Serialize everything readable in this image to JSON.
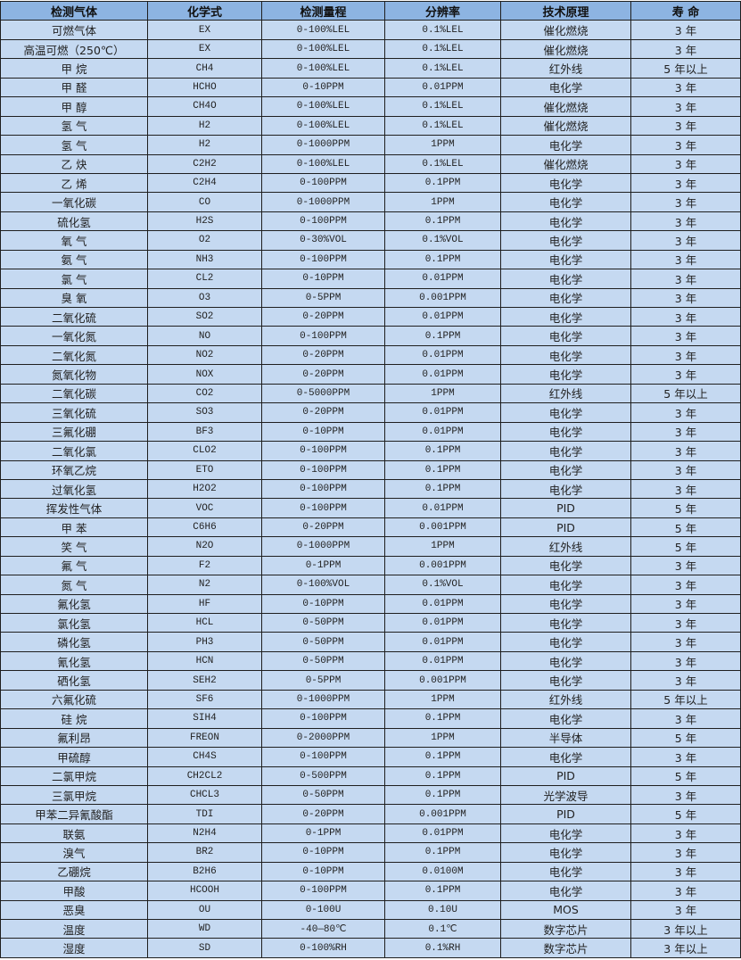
{
  "colors": {
    "header_bg": "#8db4e2",
    "row_bg": "#c5d9f1",
    "border": "#1f1f1f"
  },
  "headers": [
    "检测气体",
    "化学式",
    "检测量程",
    "分辨率",
    "技术原理",
    "寿 命"
  ],
  "rows": [
    [
      "可燃气体",
      "EX",
      "0-100%LEL",
      "0.1%LEL",
      "催化燃烧",
      "3 年"
    ],
    [
      "高温可燃（250℃）",
      "EX",
      "0-100%LEL",
      "0.1%LEL",
      "催化燃烧",
      "3 年"
    ],
    [
      "甲 烷",
      "CH4",
      "0-100%LEL",
      "0.1%LEL",
      "红外线",
      "5 年以上"
    ],
    [
      "甲 醛",
      "HCHO",
      "0-10PPM",
      "0.01PPM",
      "电化学",
      "3 年"
    ],
    [
      "甲 醇",
      "CH4O",
      "0-100%LEL",
      "0.1%LEL",
      "催化燃烧",
      "3 年"
    ],
    [
      "氢 气",
      "H2",
      "0-100%LEL",
      "0.1%LEL",
      "催化燃烧",
      "3 年"
    ],
    [
      "氢 气",
      "H2",
      "0-1000PPM",
      "1PPM",
      "电化学",
      "3 年"
    ],
    [
      "乙 炔",
      "C2H2",
      "0-100%LEL",
      "0.1%LEL",
      "催化燃烧",
      "3 年"
    ],
    [
      "乙 烯",
      "C2H4",
      "0-100PPM",
      "0.1PPM",
      "电化学",
      "3 年"
    ],
    [
      "一氧化碳",
      "CO",
      "0-1000PPM",
      "1PPM",
      "电化学",
      "3 年"
    ],
    [
      "硫化氢",
      "H2S",
      "0-100PPM",
      "0.1PPM",
      "电化学",
      "3 年"
    ],
    [
      "氧 气",
      "O2",
      "0-30%VOL",
      "0.1%VOL",
      "电化学",
      "3 年"
    ],
    [
      "氨 气",
      "NH3",
      "0-100PPM",
      "0.1PPM",
      "电化学",
      "3 年"
    ],
    [
      "氯 气",
      "CL2",
      "0-10PPM",
      "0.01PPM",
      "电化学",
      "3 年"
    ],
    [
      "臭 氧",
      "O3",
      "0-5PPM",
      "0.001PPM",
      "电化学",
      "3 年"
    ],
    [
      "二氧化硫",
      "SO2",
      "0-20PPM",
      "0.01PPM",
      "电化学",
      "3 年"
    ],
    [
      "一氧化氮",
      "NO",
      "0-100PPM",
      "0.1PPM",
      "电化学",
      "3 年"
    ],
    [
      "二氧化氮",
      "NO2",
      "0-20PPM",
      "0.01PPM",
      "电化学",
      "3 年"
    ],
    [
      "氮氧化物",
      "NOX",
      "0-20PPM",
      "0.01PPM",
      "电化学",
      "3 年"
    ],
    [
      "二氧化碳",
      "CO2",
      "0-5000PPM",
      "1PPM",
      "红外线",
      "5 年以上"
    ],
    [
      "三氧化硫",
      "SO3",
      "0-20PPM",
      "0.01PPM",
      "电化学",
      "3 年"
    ],
    [
      "三氟化硼",
      "BF3",
      "0-10PPM",
      "0.01PPM",
      "电化学",
      "3 年"
    ],
    [
      "二氧化氯",
      "CLO2",
      "0-100PPM",
      "0.1PPM",
      "电化学",
      "3 年"
    ],
    [
      "环氧乙烷",
      "ETO",
      "0-100PPM",
      "0.1PPM",
      "电化学",
      "3 年"
    ],
    [
      "过氧化氢",
      "H2O2",
      "0-100PPM",
      "0.1PPM",
      "电化学",
      "3 年"
    ],
    [
      "挥发性气体",
      "VOC",
      "0-100PPM",
      "0.01PPM",
      "PID",
      "5 年"
    ],
    [
      "甲 苯",
      "C6H6",
      "0-20PPM",
      "0.001PPM",
      "PID",
      "5 年"
    ],
    [
      "笑 气",
      "N2O",
      "0-1000PPM",
      "1PPM",
      "红外线",
      "5 年"
    ],
    [
      "氟 气",
      "F2",
      "0-1PPM",
      "0.001PPM",
      "电化学",
      "3 年"
    ],
    [
      "氮 气",
      "N2",
      "0-100%VOL",
      "0.1%VOL",
      "电化学",
      "3 年"
    ],
    [
      "氟化氢",
      "HF",
      "0-10PPM",
      "0.01PPM",
      "电化学",
      "3 年"
    ],
    [
      "氯化氢",
      "HCL",
      "0-50PPM",
      "0.01PPM",
      "电化学",
      "3 年"
    ],
    [
      "磷化氢",
      "PH3",
      "0-50PPM",
      "0.01PPM",
      "电化学",
      "3 年"
    ],
    [
      "氰化氢",
      "HCN",
      "0-50PPM",
      "0.01PPM",
      "电化学",
      "3 年"
    ],
    [
      "硒化氢",
      "SEH2",
      "0-5PPM",
      "0.001PPM",
      "电化学",
      "3 年"
    ],
    [
      "六氟化硫",
      "SF6",
      "0-1000PPM",
      "1PPM",
      "红外线",
      "5 年以上"
    ],
    [
      "硅 烷",
      "SIH4",
      "0-100PPM",
      "0.1PPM",
      "电化学",
      "3 年"
    ],
    [
      "氟利昂",
      "FREON",
      "0-2000PPM",
      "1PPM",
      "半导体",
      "5 年"
    ],
    [
      "甲硫醇",
      "CH4S",
      "0-100PPM",
      "0.1PPM",
      "电化学",
      "3 年"
    ],
    [
      "二氯甲烷",
      "CH2CL2",
      "0-500PPM",
      "0.1PPM",
      "PID",
      "5 年"
    ],
    [
      "三氯甲烷",
      "CHCL3",
      "0-50PPM",
      "0.1PPM",
      "光学波导",
      "3 年"
    ],
    [
      "甲苯二异氰酸酯",
      "TDI",
      "0-20PPM",
      "0.001PPM",
      "PID",
      "5 年"
    ],
    [
      "联氨",
      "N2H4",
      "0-1PPM",
      "0.01PPM",
      "电化学",
      "3 年"
    ],
    [
      "溴气",
      "BR2",
      "0-10PPM",
      "0.1PPM",
      "电化学",
      "3 年"
    ],
    [
      "乙硼烷",
      "B2H6",
      "0-10PPM",
      "0.0100M",
      "电化学",
      "3 年"
    ],
    [
      "甲酸",
      "HCOOH",
      "0-100PPM",
      "0.1PPM",
      "电化学",
      "3 年"
    ],
    [
      "恶臭",
      "OU",
      "0-100U",
      "0.10U",
      "MOS",
      "3 年"
    ],
    [
      "温度",
      "WD",
      "-40—80℃",
      "0.1℃",
      "数字芯片",
      "3 年以上"
    ],
    [
      "湿度",
      "SD",
      "0-100%RH",
      "0.1%RH",
      "数字芯片",
      "3 年以上"
    ]
  ]
}
